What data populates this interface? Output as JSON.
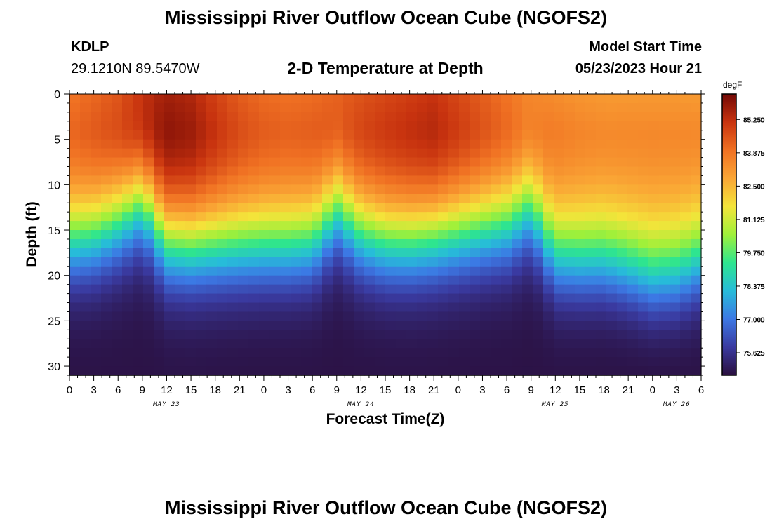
{
  "header": {
    "title": "Mississippi River Outflow Ocean Cube (NGOFS2)",
    "station": "KDLP",
    "coords": "29.1210N  89.5470W",
    "subtitle": "2-D Temperature at Depth",
    "model_start_label": "Model Start Time",
    "model_start_value": "05/23/2023 Hour 21"
  },
  "footer": {
    "title": "Mississippi River Outflow Ocean Cube (NGOFS2)"
  },
  "chart_data": {
    "type": "heatmap",
    "xlabel": "Forecast Time(Z)",
    "ylabel": "Depth (ft)",
    "x_range_hours": [
      0,
      78
    ],
    "x_tick_labels": [
      "0",
      "3",
      "6",
      "9",
      "12",
      "15",
      "18",
      "21",
      "0",
      "3",
      "6",
      "9",
      "12",
      "15",
      "18",
      "21",
      "0",
      "3",
      "6",
      "9",
      "12",
      "15",
      "18",
      "21",
      "0",
      "3",
      "6"
    ],
    "date_labels": [
      {
        "label": "MAY 23",
        "hour": 12
      },
      {
        "label": "MAY 24",
        "hour": 36
      },
      {
        "label": "MAY 25",
        "hour": 60
      },
      {
        "label": "MAY 26",
        "hour": 75
      }
    ],
    "y_range": [
      0,
      31
    ],
    "y_ticks": [
      0,
      5,
      10,
      15,
      20,
      25,
      30
    ],
    "y_inverted": true,
    "colorbar": {
      "unit": "degF",
      "tick_values": [
        85.25,
        83.875,
        82.5,
        81.125,
        79.75,
        78.375,
        77.0,
        75.625
      ],
      "tick_labels": [
        "85.250",
        "83.875",
        "82.500",
        "81.125",
        "79.750",
        "78.375",
        "77.000",
        "75.625"
      ],
      "range": [
        74.7,
        86.3
      ],
      "colors": [
        "#2a0f3e",
        "#3a3aa0",
        "#3c78e4",
        "#27bcd9",
        "#2ee58f",
        "#9ff03a",
        "#f4e43a",
        "#faa635",
        "#f07123",
        "#c8330f",
        "#720805"
      ]
    },
    "temperature_field": {
      "hours": [
        0,
        3,
        6,
        9,
        12,
        15,
        18,
        21,
        24,
        27,
        30,
        33,
        36,
        39,
        42,
        45,
        48,
        51,
        54,
        57,
        60,
        63,
        66,
        69,
        72,
        75,
        78
      ],
      "surface_temp": [
        84.3,
        84.6,
        85.0,
        85.8,
        86.1,
        85.9,
        85.3,
        84.8,
        84.5,
        84.4,
        84.5,
        84.8,
        85.0,
        85.2,
        85.4,
        85.6,
        85.2,
        84.8,
        84.4,
        84.0,
        83.8,
        83.6,
        83.5,
        83.5,
        83.5,
        83.5,
        83.5
      ],
      "thermocline_depth_ft": [
        17.0,
        16.3,
        14.5,
        12.0,
        17.0,
        17.5,
        17.5,
        17.5,
        17.5,
        17.5,
        17.0,
        13.0,
        16.0,
        17.0,
        17.0,
        16.5,
        16.0,
        15.5,
        15.0,
        13.0,
        19.0,
        19.5,
        19.5,
        20.5,
        22.0,
        21.5,
        19.5
      ],
      "bottom_temp": 74.8
    }
  }
}
